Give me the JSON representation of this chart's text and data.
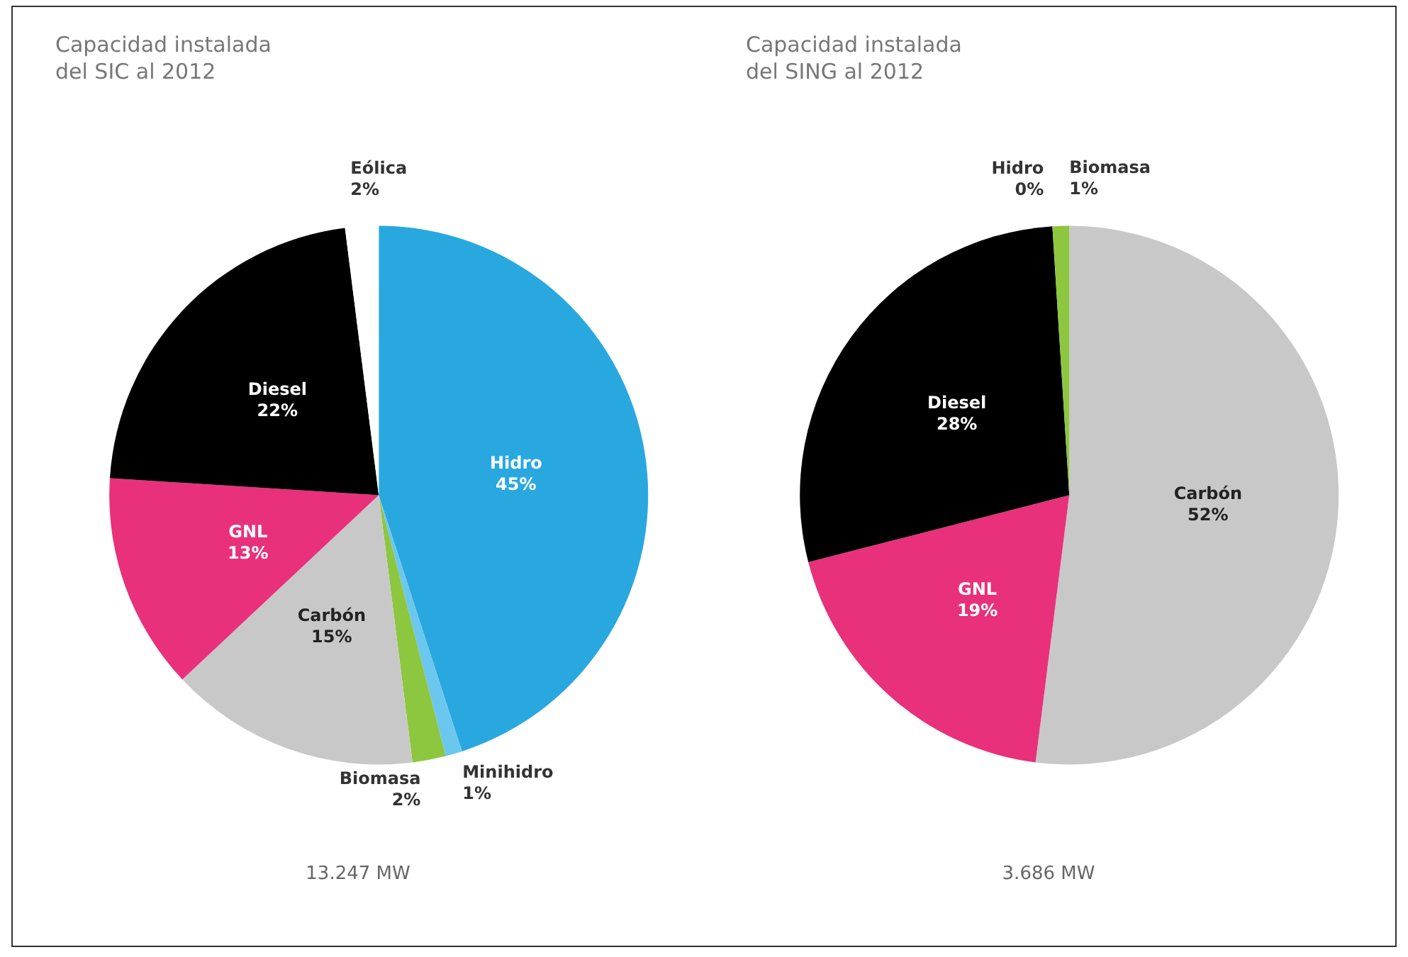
{
  "chart_data": [
    {
      "type": "pie",
      "title": "Capacidad instalada\ndel SIC al 2012",
      "categories": [
        "Hidro",
        "Minihidro",
        "Biomasa",
        "Carbón",
        "GNL",
        "Diesel",
        "Eólica"
      ],
      "values": [
        45,
        1,
        2,
        15,
        13,
        22,
        2
      ],
      "value_labels": [
        "45%",
        "1%",
        "2%",
        "15%",
        "13%",
        "22%",
        "2%"
      ],
      "colors": [
        "#29a8e0",
        "#6cc7ee",
        "#8dc63f",
        "#c8c8c8",
        "#e8317a",
        "#000000",
        "#ffffff"
      ],
      "annotations": [
        "13.247 MW"
      ],
      "legend": false
    },
    {
      "type": "pie",
      "title": "Capacidad instalada\ndel SING al 2012",
      "categories": [
        "Carbón",
        "GNL",
        "Diesel",
        "Hidro",
        "Biomasa"
      ],
      "values": [
        52,
        19,
        28,
        0,
        1
      ],
      "value_labels": [
        "52%",
        "19%",
        "28%",
        "0%",
        "1%"
      ],
      "colors": [
        "#c8c8c8",
        "#e8317a",
        "#000000",
        "#29a8e0",
        "#8dc63f"
      ],
      "annotations": [
        "3.686 MW"
      ],
      "legend": false
    }
  ]
}
